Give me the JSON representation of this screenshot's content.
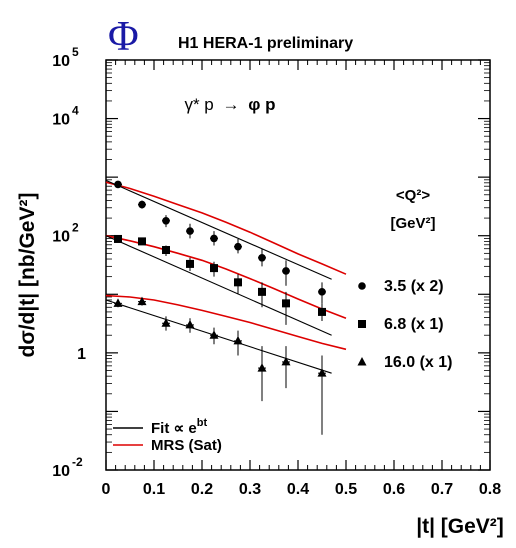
{
  "chart_data": {
    "type": "scatter",
    "logo": "Φ",
    "collaboration": "H1 HERA-1 preliminary",
    "process": {
      "lhs": "γ* p",
      "arrow": "→",
      "rhs": "φ p"
    },
    "ylabel": "dσ/d|t| [nb/GeV²]",
    "xlabel": "|t| [GeV²]",
    "x_range": [
      0,
      0.8
    ],
    "y_range": [
      0.01,
      100000
    ],
    "y_scale": "log",
    "x_ticks": [
      {
        "value": 0,
        "label": "0"
      },
      {
        "value": 0.1,
        "label": "0.1"
      },
      {
        "value": 0.2,
        "label": "0.2"
      },
      {
        "value": 0.3,
        "label": "0.3"
      },
      {
        "value": 0.4,
        "label": "0.4"
      },
      {
        "value": 0.5,
        "label": "0.5"
      },
      {
        "value": 0.6,
        "label": "0.6"
      },
      {
        "value": 0.7,
        "label": "0.7"
      },
      {
        "value": 0.8,
        "label": "0.8"
      }
    ],
    "y_ticks": [
      {
        "value": 0.01,
        "base": "10",
        "exp": "-2"
      },
      {
        "value": 1,
        "base": "1",
        "exp": ""
      },
      {
        "value": 100,
        "base": "10",
        "exp": "2"
      },
      {
        "value": 10000,
        "base": "10",
        "exp": "4"
      },
      {
        "value": 100000,
        "base": "10",
        "exp": "5"
      }
    ],
    "legend_title": {
      "line1": "<Q²>",
      "line2": "[GeV²]"
    },
    "series": [
      {
        "name": "3.5 (x 2)",
        "marker": "circle",
        "x": [
          0.025,
          0.075,
          0.125,
          0.175,
          0.225,
          0.275,
          0.325,
          0.375,
          0.45
        ],
        "y": [
          750,
          340,
          180,
          120,
          90,
          65,
          42,
          25,
          11
        ],
        "yerr_low": [
          660,
          290,
          140,
          90,
          68,
          50,
          30,
          14,
          7
        ],
        "yerr_high": [
          850,
          400,
          225,
          160,
          120,
          88,
          60,
          38,
          16
        ],
        "fit": {
          "x": [
            0,
            0.47
          ],
          "y": [
            880,
            18
          ]
        },
        "mrs": {
          "x": [
            0,
            0.05,
            0.1,
            0.15,
            0.2,
            0.25,
            0.3,
            0.35,
            0.4,
            0.45,
            0.5
          ],
          "y": [
            820,
            640,
            470,
            340,
            245,
            170,
            115,
            75,
            49,
            33,
            22
          ]
        }
      },
      {
        "name": "6.8 (x 1)",
        "marker": "square",
        "x": [
          0.025,
          0.075,
          0.125,
          0.175,
          0.225,
          0.275,
          0.325,
          0.375,
          0.45
        ],
        "y": [
          88,
          80,
          57,
          33,
          28,
          16,
          11,
          7,
          5
        ],
        "yerr_low": [
          78,
          70,
          45,
          25,
          20,
          10,
          6,
          3,
          3.5
        ],
        "yerr_high": [
          100,
          92,
          68,
          42,
          36,
          22,
          16,
          11,
          7
        ],
        "fit": {
          "x": [
            0,
            0.47
          ],
          "y": [
            100,
            2
          ]
        },
        "mrs": {
          "x": [
            0,
            0.05,
            0.1,
            0.15,
            0.2,
            0.25,
            0.3,
            0.35,
            0.4,
            0.45,
            0.5
          ],
          "y": [
            100,
            82,
            65,
            50,
            38,
            27,
            18.5,
            12.5,
            8.3,
            5.6,
            3.9
          ]
        }
      },
      {
        "name": "16.0 (x 1)",
        "marker": "triangle",
        "x": [
          0.025,
          0.075,
          0.125,
          0.175,
          0.225,
          0.275,
          0.325,
          0.375,
          0.45
        ],
        "y": [
          7,
          7.5,
          3.2,
          3,
          2,
          1.6,
          0.55,
          0.7,
          0.45
        ],
        "yerr_low": [
          6,
          6.4,
          2.4,
          2.2,
          1.4,
          0.9,
          0.15,
          0.25,
          0.04
        ],
        "yerr_high": [
          8.2,
          8.8,
          4.2,
          3.9,
          2.7,
          2.4,
          1.3,
          1.3,
          0.9
        ],
        "fit": {
          "x": [
            0,
            0.47
          ],
          "y": [
            8,
            0.45
          ]
        },
        "mrs": {
          "x": [
            0,
            0.05,
            0.1,
            0.15,
            0.2,
            0.25,
            0.3,
            0.35,
            0.4,
            0.45,
            0.5
          ],
          "y": [
            9.5,
            9.0,
            8.0,
            6.6,
            5.3,
            4.2,
            3.3,
            2.5,
            1.9,
            1.45,
            1.15
          ]
        }
      }
    ],
    "legend_lines": [
      {
        "text": "Fit ∝ e",
        "sup": "bt",
        "color": "#000000"
      },
      {
        "text": "MRS (Sat)",
        "sup": "",
        "color": "#dd0000"
      }
    ],
    "colors": {
      "data": "#000000",
      "fit": "#000000",
      "mrs": "#dd0000",
      "logo": "#1a1aa6"
    }
  }
}
